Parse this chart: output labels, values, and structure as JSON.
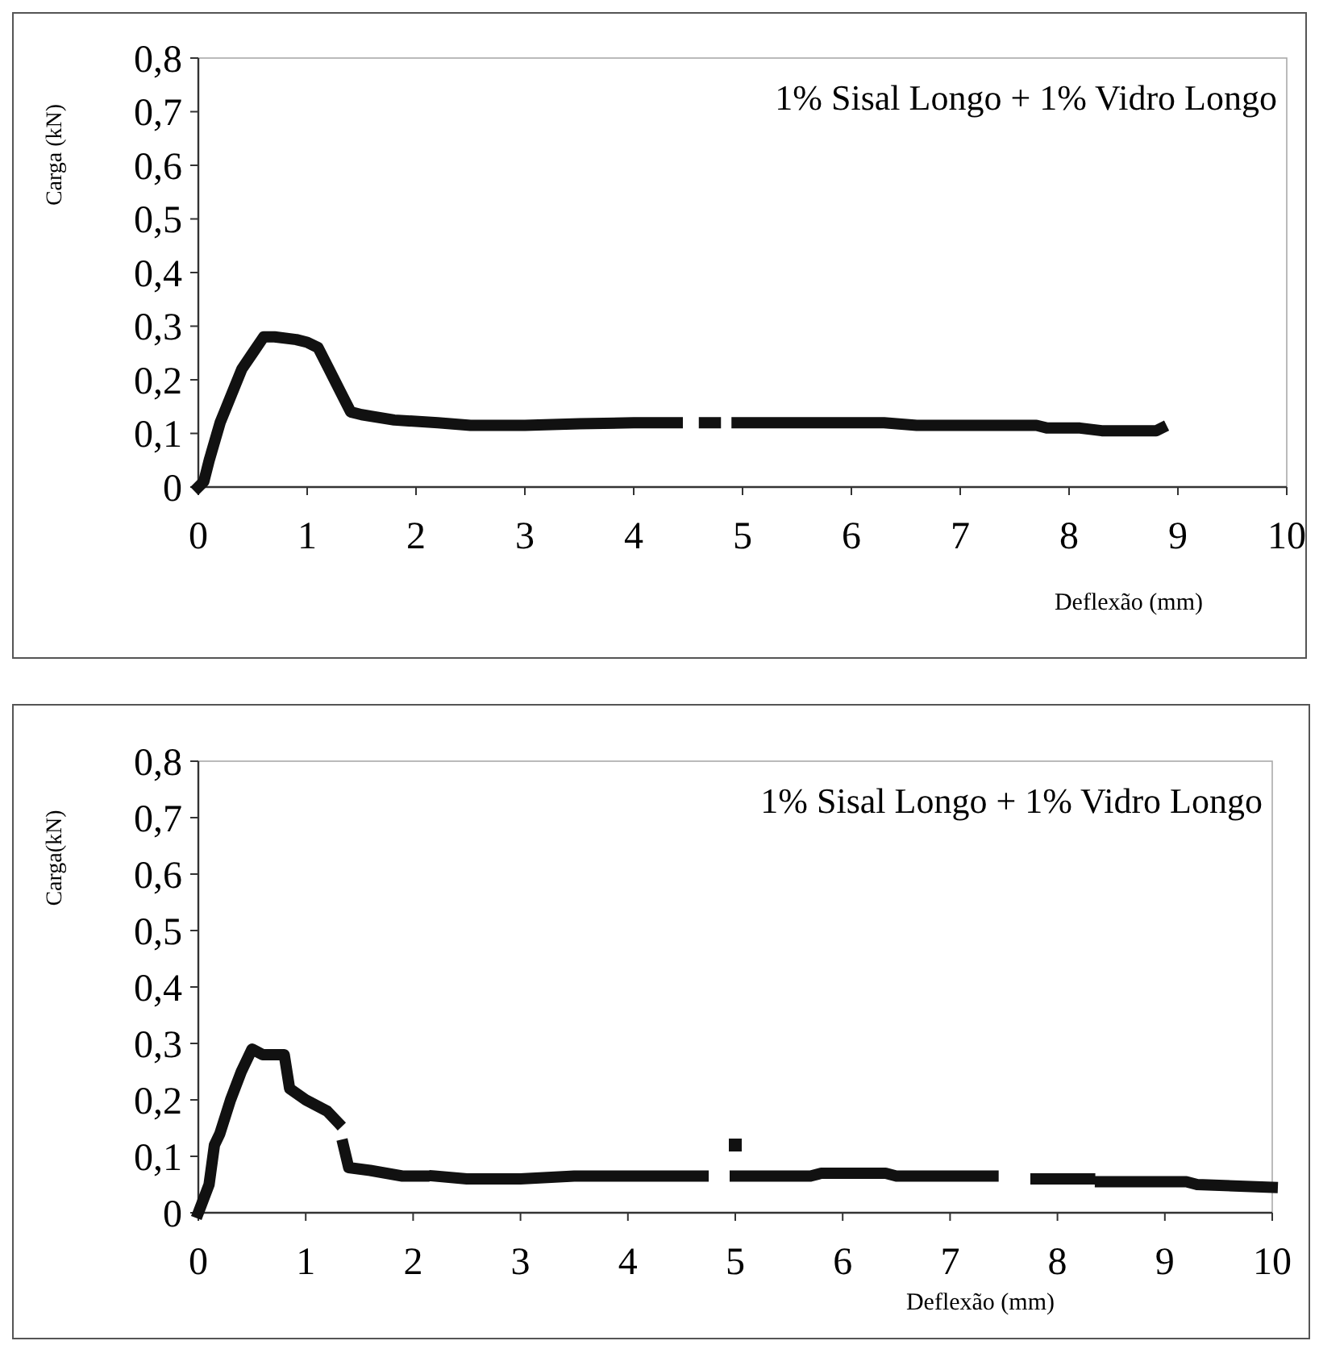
{
  "chart_data": [
    {
      "type": "line",
      "ylabel": "Carga (kN)",
      "xlabel": "Deflexão (mm)",
      "annotations": [
        "1% Sisal Longo + 1% Vidro Longo"
      ],
      "xlim": [
        0,
        10
      ],
      "xticks": [
        0,
        1,
        2,
        3,
        4,
        5,
        6,
        7,
        8,
        9,
        10
      ],
      "ylim": [
        0,
        0.8
      ],
      "yticks": [
        {
          "value": 0,
          "label": "0"
        },
        {
          "value": 0.1,
          "label": "0,1"
        },
        {
          "value": 0.2,
          "label": "0,2"
        },
        {
          "value": 0.3,
          "label": "0,3"
        },
        {
          "value": 0.4,
          "label": "0,4"
        },
        {
          "value": 0.5,
          "label": "0,5"
        },
        {
          "value": 0.6,
          "label": "0,6"
        },
        {
          "value": 0.7,
          "label": "0,7"
        },
        {
          "value": 0.8,
          "label": "0,8"
        }
      ],
      "grid": false,
      "marker": "none",
      "line_style": "solid",
      "series": [
        {
          "color": "#111111",
          "x": [
            0,
            0.05,
            0.1,
            0.2,
            0.3,
            0.4,
            0.5,
            0.6,
            0.7,
            0.9,
            1.0,
            1.1,
            1.2,
            1.3,
            1.4,
            1.5,
            1.8,
            2.2,
            2.5,
            3,
            3.5,
            4,
            4.4,
            4.5,
            4.65,
            4.75,
            4.85,
            4.95,
            5.5,
            6.3,
            6.6,
            7.7,
            7.8,
            8.1,
            8.3,
            8.8,
            8.85
          ],
          "values": [
            0,
            0.01,
            0.05,
            0.12,
            0.17,
            0.22,
            0.25,
            0.28,
            0.28,
            0.275,
            0.27,
            0.26,
            0.22,
            0.18,
            0.14,
            0.135,
            0.125,
            0.12,
            0.115,
            0.115,
            0.118,
            0.12,
            0.12,
            null,
            0.12,
            0.12,
            null,
            0.12,
            0.12,
            0.12,
            0.115,
            0.115,
            0.11,
            0.11,
            0.105,
            0.105,
            0.11
          ]
        }
      ]
    },
    {
      "type": "line",
      "ylabel": "Carga(kN)",
      "xlabel": "Deflexão (mm)",
      "annotations": [
        "1% Sisal Longo + 1% Vidro Longo"
      ],
      "xlim": [
        0,
        10
      ],
      "xticks": [
        0,
        1,
        2,
        3,
        4,
        5,
        6,
        7,
        8,
        9,
        10
      ],
      "ylim": [
        0,
        0.8
      ],
      "yticks": [
        {
          "value": 0,
          "label": "0"
        },
        {
          "value": 0.1,
          "label": "0,1"
        },
        {
          "value": 0.2,
          "label": "0,2"
        },
        {
          "value": 0.3,
          "label": "0,3"
        },
        {
          "value": 0.4,
          "label": "0,4"
        },
        {
          "value": 0.5,
          "label": "0,5"
        },
        {
          "value": 0.6,
          "label": "0,6"
        },
        {
          "value": 0.7,
          "label": "0,7"
        },
        {
          "value": 0.8,
          "label": "0,8"
        }
      ],
      "grid": false,
      "marker": "none",
      "line_style": "solid",
      "series": [
        {
          "color": "#111111",
          "x": [
            0,
            0.1,
            0.15,
            0.2,
            0.3,
            0.4,
            0.5,
            0.6,
            0.8,
            0.85,
            1.0,
            1.2,
            1.3,
            1.32,
            1.35,
            1.4,
            1.6,
            1.9,
            2.1,
            2.15,
            2.2,
            2.5,
            3.0,
            3.5,
            4.0,
            4.7,
            4.85,
            5.0,
            5.7,
            5.8,
            6.4,
            6.5,
            7.4,
            7.6,
            7.8,
            8.3,
            8.35,
            8.4,
            9.2,
            9.3,
            10
          ],
          "values": [
            0,
            0.05,
            0.12,
            0.14,
            0.2,
            0.25,
            0.29,
            0.28,
            0.28,
            0.22,
            0.2,
            0.18,
            0.16,
            null,
            0.12,
            0.08,
            0.075,
            0.065,
            0.065,
            null,
            0.065,
            0.06,
            0.06,
            0.065,
            0.065,
            0.065,
            null,
            0.065,
            0.065,
            0.07,
            0.07,
            0.065,
            0.065,
            null,
            0.06,
            0.06,
            null,
            0.055,
            0.055,
            0.05,
            0.045
          ]
        },
        {
          "type": "scatter",
          "marker": "square",
          "color": "#111111",
          "x": [
            5.0
          ],
          "values": [
            0.12
          ]
        }
      ]
    }
  ]
}
